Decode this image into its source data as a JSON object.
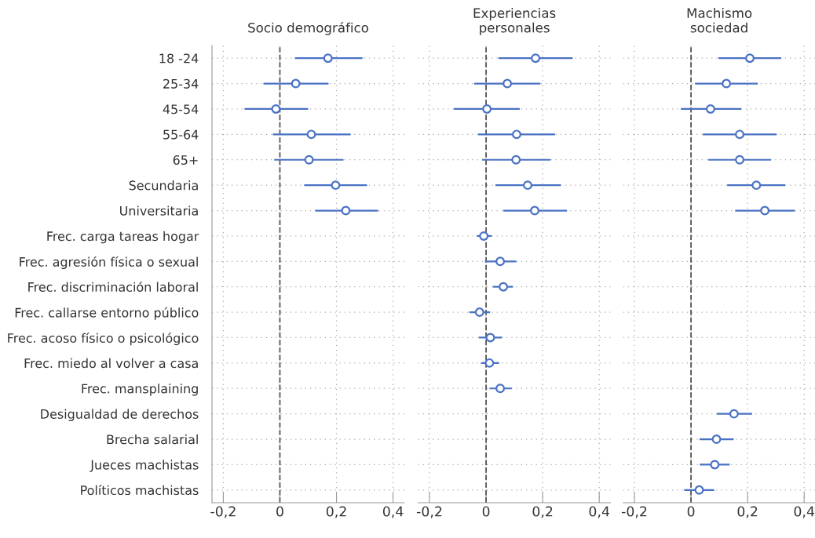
{
  "chart_data": [
    {
      "type": "scatter",
      "orientation": "horizontal",
      "title": "Socio demográfico",
      "marker": "circle",
      "grid": true,
      "color": "#4a72c4",
      "categories": [
        "18 -24",
        "25-34",
        "45-54",
        "55-64",
        "65+",
        "Secundaria",
        "Universitaria",
        "Frec. carga tareas hogar",
        "Frec. agresión física o sexual",
        "Frec. discriminación laboral",
        "Frec. callarse entorno público",
        "Frec. acoso físico o psicológico",
        "Frec. miedo al volver a casa",
        "Frec. mansplaining",
        "Desigualdad de derechos",
        "Brecha salarial",
        "Jueces machistas",
        "Políticos machistas"
      ],
      "values": [
        0.17,
        0.056,
        -0.014,
        0.111,
        0.103,
        0.197,
        0.233,
        null,
        null,
        null,
        null,
        null,
        null,
        null,
        null,
        null,
        null,
        null
      ],
      "errors": [
        [
          0.053,
          0.292
        ],
        [
          -0.058,
          0.172
        ],
        [
          -0.125,
          0.1
        ],
        [
          -0.025,
          0.25
        ],
        [
          -0.02,
          0.225
        ],
        [
          0.086,
          0.308
        ],
        [
          0.125,
          0.347
        ],
        null,
        null,
        null,
        null,
        null,
        null,
        null,
        null,
        null,
        null,
        null
      ],
      "xlim": [
        -0.24,
        0.44
      ],
      "xticks": [
        {
          "value": -0.2,
          "label": "-0,2"
        },
        0,
        {
          "value": 0.2,
          "label": "0,2"
        },
        {
          "value": 0.4,
          "label": "0,4"
        }
      ],
      "ref_lines": [
        {
          "axis": "x",
          "value": 0,
          "line_style": "dashed",
          "color": "#555555"
        }
      ]
    },
    {
      "type": "scatter",
      "orientation": "horizontal",
      "title": "Experiencias\npersonales",
      "marker": "circle",
      "grid": true,
      "color": "#4a72c4",
      "tick_labels": "x",
      "values": [
        0.175,
        0.075,
        0.003,
        0.108,
        0.106,
        0.147,
        0.172,
        -0.008,
        0.05,
        0.061,
        -0.023,
        0.015,
        0.012,
        0.05,
        null,
        null,
        null,
        null
      ],
      "errors": [
        [
          0.044,
          0.306
        ],
        [
          -0.042,
          0.192
        ],
        [
          -0.114,
          0.119
        ],
        [
          -0.028,
          0.244
        ],
        [
          -0.014,
          0.228
        ],
        [
          0.033,
          0.264
        ],
        [
          0.061,
          0.286
        ],
        [
          -0.033,
          0.02
        ],
        [
          -0.004,
          0.107
        ],
        [
          0.024,
          0.095
        ],
        [
          -0.059,
          0.014
        ],
        [
          -0.026,
          0.056
        ],
        [
          -0.018,
          0.046
        ],
        [
          0.012,
          0.091
        ],
        null,
        null,
        null,
        null
      ],
      "xlim": [
        -0.24,
        0.44
      ],
      "xticks": [
        {
          "value": -0.2,
          "label": "-0,2"
        },
        0,
        {
          "value": 0.2,
          "label": "0,2"
        },
        {
          "value": 0.4,
          "label": "0,4"
        }
      ],
      "ref_lines": [
        {
          "axis": "x",
          "value": 0,
          "line_style": "dashed",
          "color": "#555555"
        }
      ]
    },
    {
      "type": "scatter",
      "orientation": "horizontal",
      "title": "Machismo\nsociedad",
      "marker": "circle",
      "grid": true,
      "color": "#4a72c4",
      "tick_labels": "x",
      "values": [
        0.208,
        0.125,
        0.069,
        0.172,
        0.172,
        0.231,
        0.261,
        null,
        null,
        null,
        null,
        null,
        null,
        null,
        0.152,
        0.09,
        0.084,
        0.029
      ],
      "errors": [
        [
          0.097,
          0.319
        ],
        [
          0.014,
          0.236
        ],
        [
          -0.036,
          0.178
        ],
        [
          0.042,
          0.303
        ],
        [
          0.061,
          0.283
        ],
        [
          0.128,
          0.333
        ],
        [
          0.156,
          0.367
        ],
        null,
        null,
        null,
        null,
        null,
        null,
        null,
        [
          0.091,
          0.216
        ],
        [
          0.03,
          0.151
        ],
        [
          0.031,
          0.137
        ],
        [
          -0.024,
          0.082
        ]
      ],
      "xlim": [
        -0.24,
        0.44
      ],
      "xticks": [
        {
          "value": -0.2,
          "label": "-0,2"
        },
        0,
        {
          "value": 0.2,
          "label": "0,2"
        },
        {
          "value": 0.4,
          "label": "0,4"
        }
      ],
      "ref_lines": [
        {
          "axis": "x",
          "value": 0,
          "line_style": "dashed",
          "color": "#555555"
        }
      ]
    }
  ]
}
